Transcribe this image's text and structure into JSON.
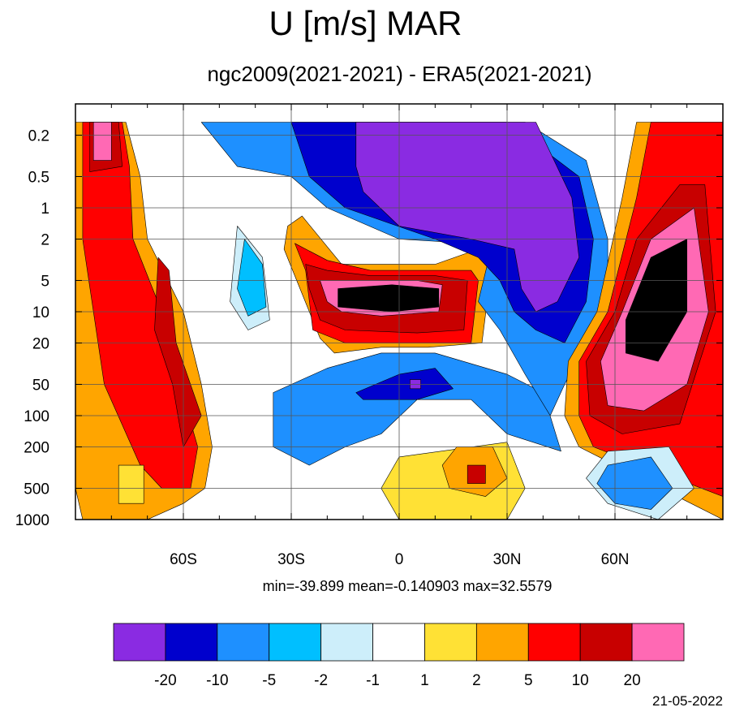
{
  "title": "U [m/s] MAR",
  "subtitle": "ngc2009(2021-2021) - ERA5(2021-2021)",
  "stats": "min=-39.899   mean=-0.140903   max=32.5579",
  "date": "21-05-2022",
  "chart_data": {
    "type": "heatmap",
    "title": "U [m/s] MAR",
    "subtitle": "ngc2009(2021-2021) - ERA5(2021-2021)",
    "x_range": [
      -90,
      90
    ],
    "x_ticks": [
      {
        "value": -60,
        "label": "60S"
      },
      {
        "value": -30,
        "label": "30S"
      },
      {
        "value": 0,
        "label": "0"
      },
      {
        "value": 30,
        "label": "30N"
      },
      {
        "value": 60,
        "label": "60N"
      }
    ],
    "y_scale": "log",
    "y_range": [
      1000,
      0.1
    ],
    "y_ticks": [
      {
        "value": 0.2,
        "label": "0.2"
      },
      {
        "value": 0.5,
        "label": "0.5"
      },
      {
        "value": 1,
        "label": "1"
      },
      {
        "value": 2,
        "label": "2"
      },
      {
        "value": 5,
        "label": "5"
      },
      {
        "value": 10,
        "label": "10"
      },
      {
        "value": 20,
        "label": "20"
      },
      {
        "value": 50,
        "label": "50"
      },
      {
        "value": 100,
        "label": "100"
      },
      {
        "value": 200,
        "label": "200"
      },
      {
        "value": 500,
        "label": "500"
      },
      {
        "value": 1000,
        "label": "1000"
      }
    ],
    "grid": true,
    "min": -39.899,
    "mean": -0.140903,
    "max": 32.5579,
    "colorbar": {
      "colors": [
        "#8a2be2",
        "#0000cd",
        "#1e90ff",
        "#00bfff",
        "#cdeefa",
        "#ffffff",
        "#ffe135",
        "#ffa500",
        "#ff0000",
        "#c80000",
        "#ff69b4"
      ],
      "labels": [
        "-20",
        "-10",
        "-5",
        "-2",
        "-1",
        "1",
        "2",
        "5",
        "10",
        "20"
      ]
    },
    "regions": [
      {
        "level": 2,
        "points": [
          [
            -88,
            0.15
          ],
          [
            -76,
            0.15
          ],
          [
            -72,
            0.5
          ],
          [
            -70,
            2
          ],
          [
            -60,
            10
          ],
          [
            -55,
            50
          ],
          [
            -52,
            200
          ],
          [
            -54,
            500
          ],
          [
            -60,
            700
          ],
          [
            -70,
            1000
          ],
          [
            -88,
            1000
          ],
          [
            -90,
            500
          ],
          [
            -90,
            0.15
          ]
        ]
      },
      {
        "level": 3,
        "points": [
          [
            -87,
            0.15
          ],
          [
            -77,
            0.15
          ],
          [
            -75,
            0.4
          ],
          [
            -74,
            2
          ],
          [
            -66,
            10
          ],
          [
            -61,
            50
          ],
          [
            -56,
            200
          ],
          [
            -58,
            500
          ],
          [
            -66,
            500
          ],
          [
            -72,
            300
          ],
          [
            -82,
            50
          ],
          [
            -88,
            2
          ],
          [
            -88,
            0.15
          ]
        ]
      },
      {
        "level": 4,
        "points": [
          [
            -86,
            0.15
          ],
          [
            -78,
            0.15
          ],
          [
            -77,
            0.4
          ],
          [
            -86,
            0.45
          ]
        ]
      },
      {
        "level": 4,
        "points": [
          [
            -67,
            3
          ],
          [
            -64,
            4
          ],
          [
            -62,
            20
          ],
          [
            -55,
            100
          ],
          [
            -60,
            200
          ],
          [
            -63,
            50
          ],
          [
            -68,
            15
          ]
        ]
      },
      {
        "level": 5,
        "points": [
          [
            -85,
            0.15
          ],
          [
            -80,
            0.15
          ],
          [
            -80,
            0.35
          ],
          [
            -85,
            0.35
          ]
        ]
      },
      {
        "level": 1,
        "points": [
          [
            -78,
            700
          ],
          [
            -71,
            700
          ],
          [
            -71,
            300
          ],
          [
            -78,
            300
          ]
        ]
      },
      {
        "level": 2,
        "points": [
          [
            -31,
            1.5
          ],
          [
            -27,
            1.2
          ],
          [
            -16,
            3.5
          ],
          [
            10,
            3.5
          ],
          [
            22,
            2.5
          ],
          [
            26,
            3
          ],
          [
            23,
            20
          ],
          [
            8,
            22
          ],
          [
            -5,
            22
          ],
          [
            -18,
            25
          ],
          [
            -22,
            18
          ],
          [
            -32,
            2.5
          ]
        ]
      },
      {
        "level": 3,
        "points": [
          [
            -29,
            2.2
          ],
          [
            -20,
            3.2
          ],
          [
            -8,
            4
          ],
          [
            10,
            4
          ],
          [
            20,
            4
          ],
          [
            22,
            5
          ],
          [
            20,
            20
          ],
          [
            5,
            20
          ],
          [
            -15,
            20
          ],
          [
            -24,
            15
          ],
          [
            -26,
            4
          ]
        ]
      },
      {
        "level": 4,
        "points": [
          [
            -26,
            3.5
          ],
          [
            -20,
            4
          ],
          [
            -8,
            4.5
          ],
          [
            10,
            4.5
          ],
          [
            19,
            5
          ],
          [
            18,
            15
          ],
          [
            5,
            16
          ],
          [
            -15,
            15
          ],
          [
            -22,
            12
          ],
          [
            -25,
            6
          ]
        ]
      },
      {
        "level": 5,
        "points": [
          [
            -22,
            5
          ],
          [
            -10,
            5
          ],
          [
            5,
            5
          ],
          [
            12,
            5.5
          ],
          [
            11,
            10
          ],
          [
            -5,
            11
          ],
          [
            -16,
            10
          ],
          [
            -20,
            8
          ]
        ]
      },
      {
        "level": 6,
        "points": [
          [
            -17,
            6
          ],
          [
            -2,
            5.5
          ],
          [
            11,
            6
          ],
          [
            11,
            9
          ],
          [
            -2,
            10
          ],
          [
            -17,
            9
          ]
        ]
      },
      {
        "level": -3,
        "points": [
          [
            -15,
            200
          ],
          [
            -5,
            150
          ],
          [
            5,
            70
          ],
          [
            20,
            70
          ],
          [
            30,
            150
          ],
          [
            45,
            220
          ],
          [
            40,
            60
          ],
          [
            30,
            40
          ],
          [
            10,
            25
          ],
          [
            -5,
            25
          ],
          [
            -20,
            35
          ],
          [
            -35,
            60
          ],
          [
            -35,
            200
          ],
          [
            -25,
            300
          ]
        ]
      },
      {
        "level": -4,
        "points": [
          [
            -12,
            60
          ],
          [
            0,
            40
          ],
          [
            10,
            35
          ],
          [
            15,
            55
          ],
          [
            5,
            70
          ],
          [
            -10,
            70
          ]
        ]
      },
      {
        "level": -5,
        "points": [
          [
            3,
            45
          ],
          [
            6,
            45
          ],
          [
            6,
            55
          ],
          [
            3,
            55
          ]
        ]
      },
      {
        "level": -1,
        "points": [
          [
            -45,
            1.5
          ],
          [
            -38,
            3
          ],
          [
            -36,
            12
          ],
          [
            -42,
            15
          ],
          [
            -47,
            8
          ]
        ]
      },
      {
        "level": -2,
        "points": [
          [
            -43,
            2
          ],
          [
            -38,
            3.5
          ],
          [
            -37,
            9
          ],
          [
            -42,
            11
          ],
          [
            -45,
            6
          ]
        ]
      },
      {
        "level": -3,
        "points": [
          [
            -55,
            0.15
          ],
          [
            -10,
            0.15
          ],
          [
            10,
            0.15
          ],
          [
            35,
            0.15
          ],
          [
            52,
            0.35
          ],
          [
            58,
            2
          ],
          [
            58,
            10
          ],
          [
            52,
            20
          ],
          [
            46,
            50
          ],
          [
            42,
            100
          ],
          [
            35,
            40
          ],
          [
            28,
            15
          ],
          [
            22,
            8
          ],
          [
            25,
            3
          ],
          [
            20,
            2.2
          ],
          [
            0,
            2
          ],
          [
            -20,
            1
          ],
          [
            -30,
            0.5
          ],
          [
            -45,
            0.4
          ]
        ]
      },
      {
        "level": -4,
        "points": [
          [
            -30,
            0.15
          ],
          [
            0,
            0.15
          ],
          [
            30,
            0.15
          ],
          [
            50,
            0.5
          ],
          [
            54,
            2
          ],
          [
            52,
            8
          ],
          [
            46,
            20
          ],
          [
            38,
            15
          ],
          [
            32,
            10
          ],
          [
            28,
            5
          ],
          [
            22,
            3
          ],
          [
            10,
            2
          ],
          [
            -15,
            1
          ],
          [
            -25,
            0.5
          ]
        ]
      },
      {
        "level": -5,
        "points": [
          [
            -12,
            0.15
          ],
          [
            0,
            0.15
          ],
          [
            38,
            0.15
          ],
          [
            48,
            0.8
          ],
          [
            50,
            3
          ],
          [
            44,
            8
          ],
          [
            38,
            10
          ],
          [
            34,
            6
          ],
          [
            32,
            2.5
          ],
          [
            20,
            2
          ],
          [
            0,
            1.5
          ],
          [
            -10,
            0.7
          ],
          [
            -12,
            0.4
          ]
        ]
      },
      {
        "level": 2,
        "points": [
          [
            90,
            0.15
          ],
          [
            66,
            0.15
          ],
          [
            62,
            0.8
          ],
          [
            55,
            10
          ],
          [
            47,
            30
          ],
          [
            46,
            100
          ],
          [
            50,
            200
          ],
          [
            90,
            1000
          ]
        ]
      },
      {
        "level": 3,
        "points": [
          [
            90,
            0.15
          ],
          [
            70,
            0.15
          ],
          [
            66,
            0.8
          ],
          [
            58,
            10
          ],
          [
            50,
            30
          ],
          [
            50,
            100
          ],
          [
            54,
            200
          ],
          [
            90,
            600
          ]
        ]
      },
      {
        "level": 4,
        "points": [
          [
            85,
            0.6
          ],
          [
            78,
            0.6
          ],
          [
            66,
            2
          ],
          [
            60,
            10
          ],
          [
            52,
            30
          ],
          [
            53,
            100
          ],
          [
            62,
            150
          ],
          [
            78,
            120
          ],
          [
            88,
            10
          ]
        ]
      },
      {
        "level": 5,
        "points": [
          [
            82,
            1
          ],
          [
            70,
            2
          ],
          [
            62,
            10
          ],
          [
            56,
            30
          ],
          [
            58,
            80
          ],
          [
            68,
            90
          ],
          [
            80,
            50
          ],
          [
            86,
            10
          ]
        ]
      },
      {
        "level": 6,
        "points": [
          [
            80,
            2
          ],
          [
            70,
            3
          ],
          [
            63,
            12
          ],
          [
            63,
            25
          ],
          [
            72,
            30
          ],
          [
            80,
            10
          ]
        ]
      },
      {
        "level": -1,
        "points": [
          [
            58,
            220
          ],
          [
            75,
            200
          ],
          [
            82,
            500
          ],
          [
            72,
            1000
          ],
          [
            58,
            700
          ],
          [
            52,
            400
          ]
        ]
      },
      {
        "level": -3,
        "points": [
          [
            58,
            300
          ],
          [
            70,
            250
          ],
          [
            76,
            500
          ],
          [
            70,
            800
          ],
          [
            60,
            700
          ],
          [
            55,
            450
          ]
        ]
      },
      {
        "level": 1,
        "points": [
          [
            0,
            250
          ],
          [
            30,
            180
          ],
          [
            35,
            500
          ],
          [
            30,
            1000
          ],
          [
            0,
            1000
          ],
          [
            -5,
            500
          ]
        ]
      },
      {
        "level": 2,
        "points": [
          [
            16,
            200
          ],
          [
            26,
            200
          ],
          [
            30,
            400
          ],
          [
            24,
            600
          ],
          [
            14,
            500
          ],
          [
            12,
            300
          ]
        ]
      },
      {
        "level": 4,
        "points": [
          [
            19,
            300
          ],
          [
            24,
            300
          ],
          [
            24,
            450
          ],
          [
            19,
            450
          ]
        ]
      }
    ]
  }
}
